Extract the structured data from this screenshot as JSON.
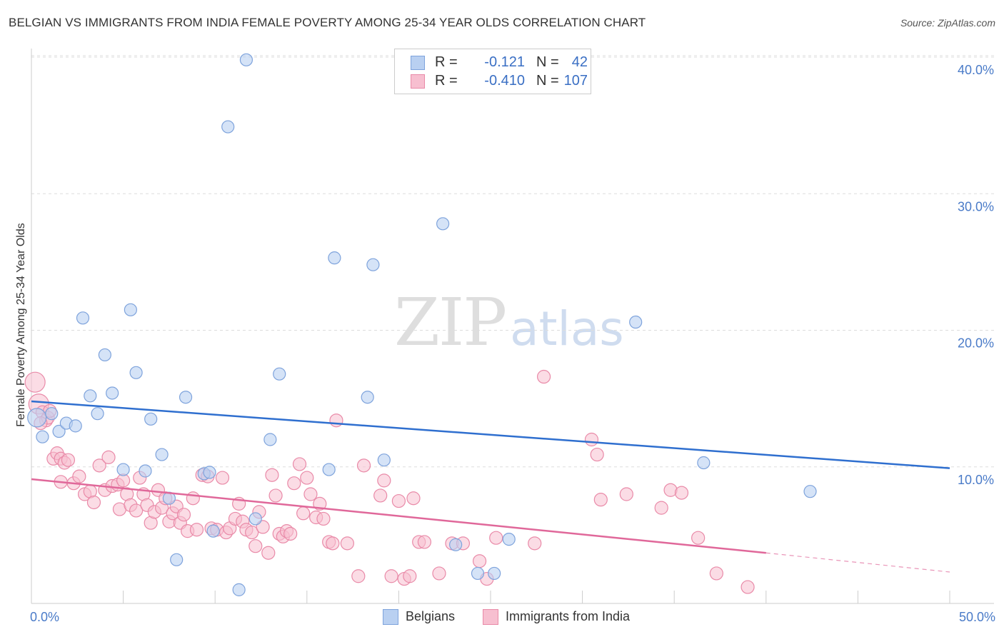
{
  "header": {
    "title": "BELGIAN VS IMMIGRANTS FROM INDIA FEMALE POVERTY AMONG 25-34 YEAR OLDS CORRELATION CHART",
    "source": "Source: ZipAtlas.com"
  },
  "watermark": {
    "zip": "ZIP",
    "atlas": "atlas"
  },
  "legend": {
    "r_label": "R =",
    "n_label": "N =",
    "belgians": {
      "r": "-0.121",
      "n": "42"
    },
    "india": {
      "r": "-0.410",
      "n": "107"
    }
  },
  "bottom_legend": {
    "belgians": "Belgians",
    "india": "Immigrants from India"
  },
  "colors": {
    "belgians_fill": "#b9d0f1",
    "belgians_stroke": "#7ea3dc",
    "belgians_line": "#2f6fcf",
    "india_fill": "#f7bfd0",
    "india_stroke": "#e98aa8",
    "india_line": "#e0689a",
    "tick_text": "#4a7bc8",
    "grid": "#dddddd"
  },
  "chart_data": {
    "type": "scatter",
    "title": "BELGIAN VS IMMIGRANTS FROM INDIA FEMALE POVERTY AMONG 25-34 YEAR OLDS CORRELATION CHART",
    "xlabel": "",
    "ylabel": "Female Poverty Among 25-34 Year Olds",
    "xlim": [
      0,
      50
    ],
    "ylim": [
      0,
      40
    ],
    "x_tick_labels": [
      "0.0%",
      "50.0%"
    ],
    "y_ticks": [
      10,
      20,
      30,
      40
    ],
    "y_tick_labels": [
      "10.0%",
      "20.0%",
      "30.0%",
      "40.0%"
    ],
    "grid": true,
    "legend_position": "top-center",
    "series": [
      {
        "name": "Belgians",
        "points": [
          [
            0.3,
            13.6
          ],
          [
            0.6,
            12.2
          ],
          [
            1.1,
            13.9
          ],
          [
            1.5,
            12.6
          ],
          [
            1.9,
            13.2
          ],
          [
            2.4,
            13.0
          ],
          [
            2.8,
            20.9
          ],
          [
            3.2,
            15.2
          ],
          [
            3.6,
            13.9
          ],
          [
            4.0,
            18.2
          ],
          [
            4.4,
            15.4
          ],
          [
            5.0,
            9.8
          ],
          [
            5.4,
            21.5
          ],
          [
            5.7,
            16.9
          ],
          [
            6.2,
            9.7
          ],
          [
            6.5,
            13.5
          ],
          [
            7.1,
            10.9
          ],
          [
            7.5,
            7.7
          ],
          [
            7.9,
            3.2
          ],
          [
            8.4,
            15.1
          ],
          [
            9.4,
            9.5
          ],
          [
            9.7,
            9.6
          ],
          [
            9.9,
            5.3
          ],
          [
            10.7,
            34.9
          ],
          [
            11.3,
            1.0
          ],
          [
            11.7,
            39.8
          ],
          [
            12.2,
            6.2
          ],
          [
            13.0,
            12.0
          ],
          [
            13.5,
            16.8
          ],
          [
            16.2,
            9.8
          ],
          [
            16.5,
            25.3
          ],
          [
            18.3,
            15.1
          ],
          [
            18.6,
            24.8
          ],
          [
            19.2,
            10.5
          ],
          [
            22.4,
            27.8
          ],
          [
            23.1,
            4.3
          ],
          [
            24.3,
            2.2
          ],
          [
            25.2,
            2.2
          ],
          [
            26.0,
            4.7
          ],
          [
            32.9,
            20.6
          ],
          [
            36.6,
            10.3
          ],
          [
            42.4,
            8.2
          ]
        ],
        "trend": {
          "x": [
            0,
            50
          ],
          "y": [
            14.8,
            9.9
          ]
        }
      },
      {
        "name": "Immigrants from India",
        "points": [
          [
            0.2,
            16.2
          ],
          [
            0.4,
            14.6
          ],
          [
            0.6,
            14.0
          ],
          [
            0.8,
            13.4
          ],
          [
            0.9,
            13.6
          ],
          [
            1.2,
            10.6
          ],
          [
            1.4,
            11.0
          ],
          [
            1.6,
            10.6
          ],
          [
            1.8,
            10.3
          ],
          [
            2.0,
            10.5
          ],
          [
            2.3,
            8.8
          ],
          [
            2.6,
            9.3
          ],
          [
            2.9,
            8.0
          ],
          [
            3.2,
            8.2
          ],
          [
            3.4,
            7.4
          ],
          [
            3.7,
            10.1
          ],
          [
            4.0,
            8.3
          ],
          [
            4.2,
            10.7
          ],
          [
            4.4,
            8.6
          ],
          [
            4.7,
            8.7
          ],
          [
            4.8,
            6.9
          ],
          [
            5.0,
            9.0
          ],
          [
            5.2,
            8.0
          ],
          [
            5.4,
            7.2
          ],
          [
            5.7,
            6.8
          ],
          [
            5.9,
            9.2
          ],
          [
            6.1,
            8.0
          ],
          [
            6.3,
            7.2
          ],
          [
            6.5,
            5.9
          ],
          [
            6.7,
            6.7
          ],
          [
            6.9,
            8.3
          ],
          [
            7.1,
            7.0
          ],
          [
            7.3,
            7.7
          ],
          [
            7.5,
            6.0
          ],
          [
            7.7,
            6.6
          ],
          [
            7.9,
            7.1
          ],
          [
            8.1,
            5.9
          ],
          [
            8.3,
            6.5
          ],
          [
            8.5,
            5.3
          ],
          [
            8.8,
            7.7
          ],
          [
            9.0,
            5.4
          ],
          [
            9.3,
            9.4
          ],
          [
            9.6,
            9.3
          ],
          [
            9.8,
            5.5
          ],
          [
            10.1,
            5.4
          ],
          [
            10.4,
            9.2
          ],
          [
            10.6,
            5.2
          ],
          [
            10.8,
            5.5
          ],
          [
            11.1,
            6.2
          ],
          [
            11.3,
            7.3
          ],
          [
            11.5,
            6.0
          ],
          [
            11.7,
            5.4
          ],
          [
            12.0,
            5.2
          ],
          [
            12.2,
            4.2
          ],
          [
            12.4,
            6.7
          ],
          [
            12.6,
            5.6
          ],
          [
            12.9,
            3.7
          ],
          [
            13.1,
            9.4
          ],
          [
            13.3,
            7.9
          ],
          [
            13.5,
            5.1
          ],
          [
            13.7,
            4.9
          ],
          [
            13.9,
            5.3
          ],
          [
            14.1,
            5.1
          ],
          [
            14.3,
            8.8
          ],
          [
            14.6,
            10.2
          ],
          [
            14.8,
            6.6
          ],
          [
            15.0,
            9.2
          ],
          [
            15.2,
            8.0
          ],
          [
            15.5,
            6.3
          ],
          [
            15.7,
            7.3
          ],
          [
            15.9,
            6.2
          ],
          [
            16.2,
            4.5
          ],
          [
            16.4,
            4.4
          ],
          [
            16.6,
            13.4
          ],
          [
            17.2,
            4.4
          ],
          [
            17.8,
            2.0
          ],
          [
            18.1,
            10.1
          ],
          [
            19.0,
            7.9
          ],
          [
            19.2,
            9.0
          ],
          [
            19.6,
            2.0
          ],
          [
            20.0,
            7.5
          ],
          [
            20.3,
            1.8
          ],
          [
            20.6,
            2.0
          ],
          [
            20.8,
            7.7
          ],
          [
            21.1,
            4.5
          ],
          [
            21.4,
            4.5
          ],
          [
            22.2,
            2.2
          ],
          [
            22.9,
            4.4
          ],
          [
            23.5,
            4.4
          ],
          [
            24.4,
            3.1
          ],
          [
            24.8,
            1.8
          ],
          [
            25.3,
            4.8
          ],
          [
            27.4,
            4.4
          ],
          [
            27.9,
            16.6
          ],
          [
            30.5,
            12.0
          ],
          [
            30.8,
            10.9
          ],
          [
            31.0,
            7.6
          ],
          [
            32.4,
            8.0
          ],
          [
            34.3,
            7.0
          ],
          [
            34.8,
            8.3
          ],
          [
            35.4,
            8.1
          ],
          [
            36.3,
            4.8
          ],
          [
            37.3,
            2.2
          ],
          [
            39.0,
            1.2
          ],
          [
            0.5,
            13.2
          ],
          [
            1.0,
            14.1
          ],
          [
            1.6,
            8.9
          ]
        ],
        "trend": {
          "x": [
            0,
            40
          ],
          "y": [
            9.1,
            3.7
          ]
        },
        "trend_dashed": {
          "x": [
            40,
            50
          ],
          "y": [
            3.7,
            2.3
          ]
        }
      }
    ]
  }
}
